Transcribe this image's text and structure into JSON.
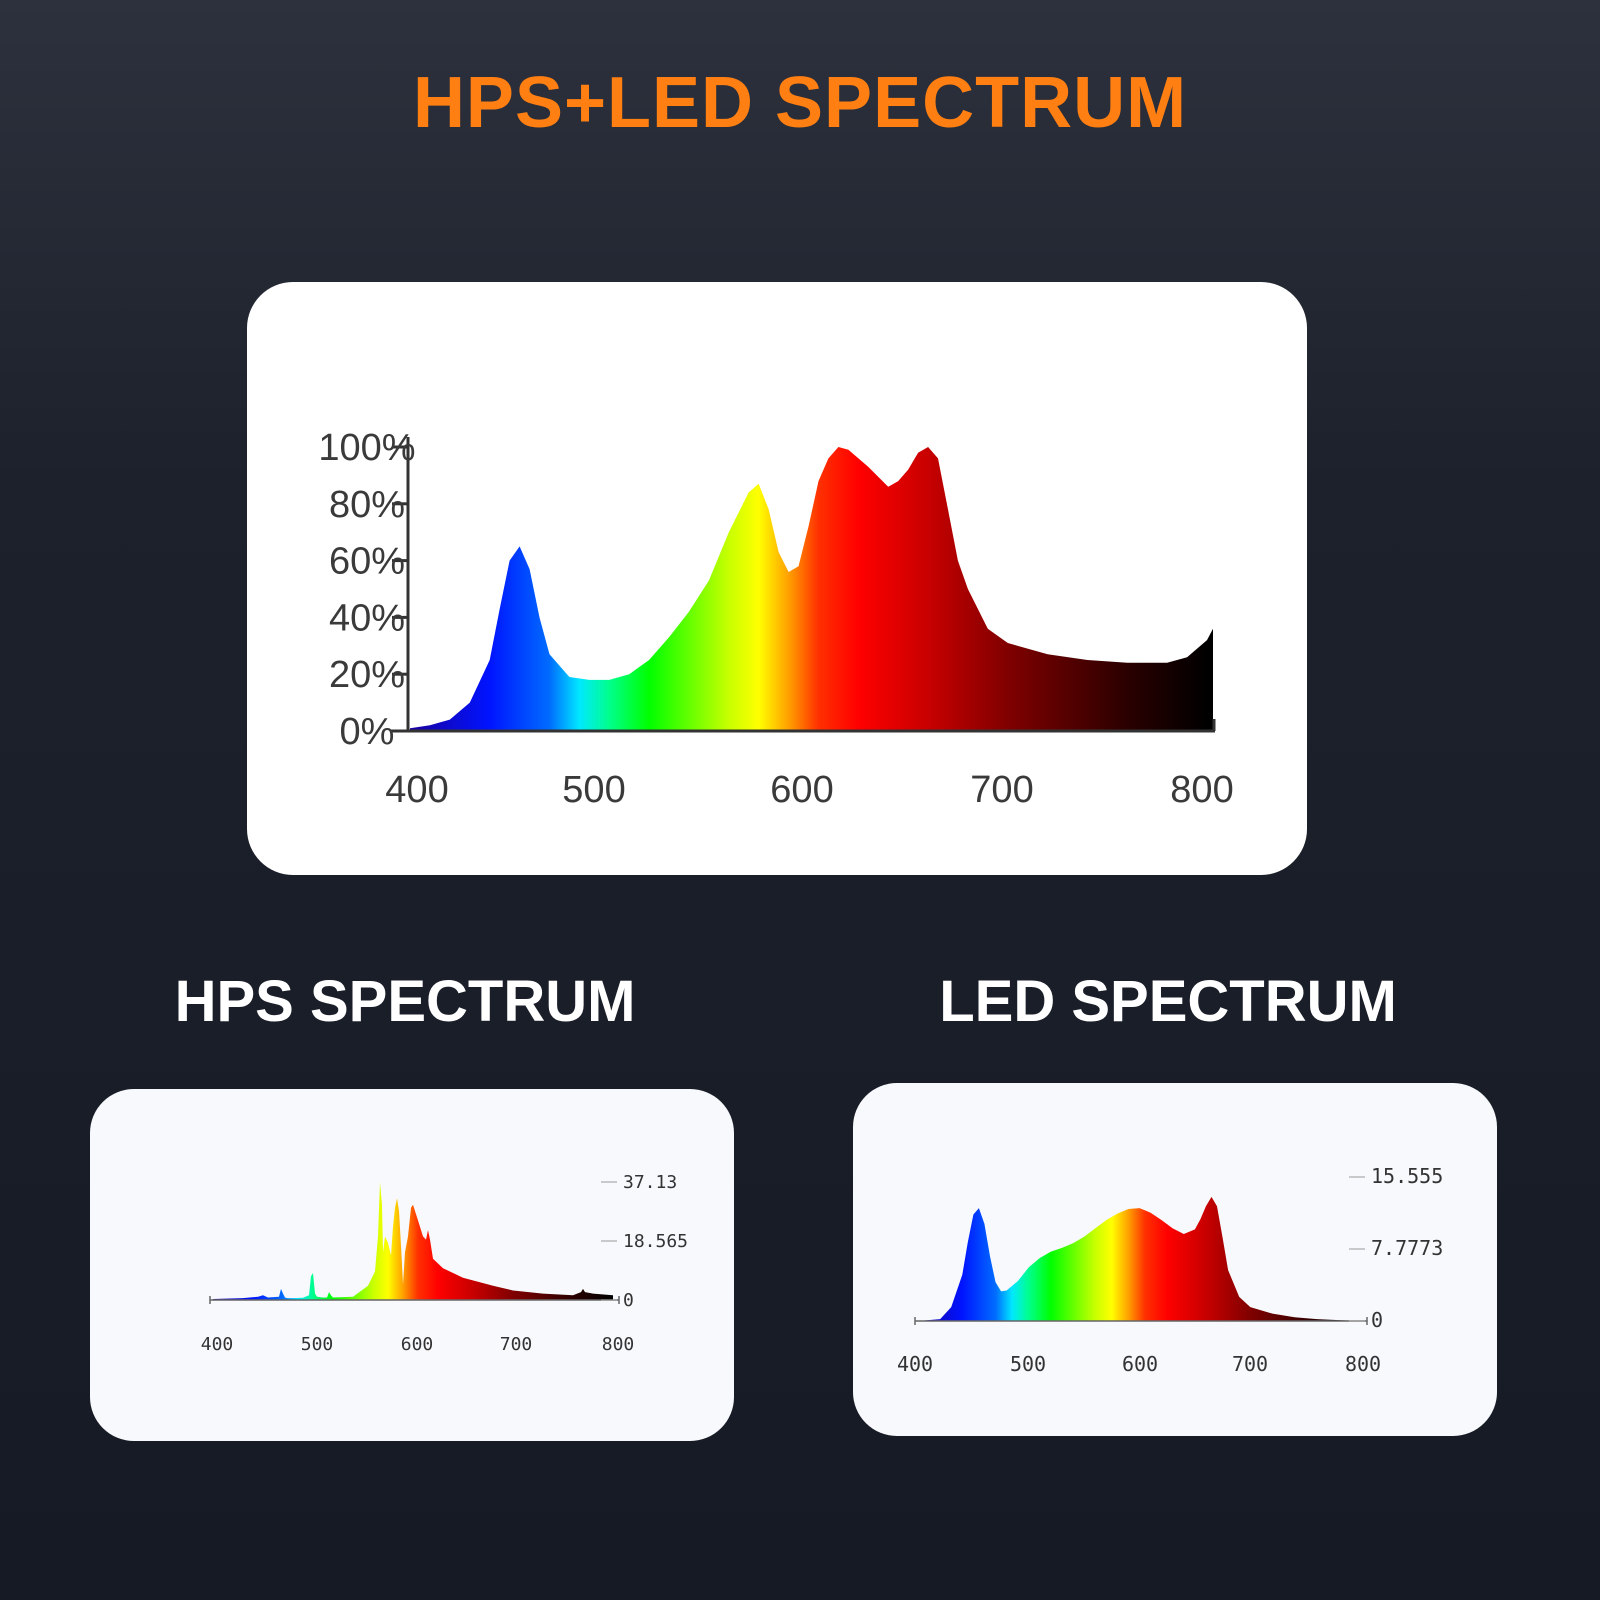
{
  "titles": {
    "main": "HPS+LED SPECTRUM",
    "hps": "HPS SPECTRUM",
    "led": "LED SPECTRUM"
  },
  "colors": {
    "main_title": "#ff7f12",
    "sub_title": "#ffffff",
    "card_background": "#ffffff",
    "page_background": "#161a24"
  },
  "chart_data": [
    {
      "id": "combined",
      "type": "area",
      "title": "HPS+LED SPECTRUM",
      "xlabel": "",
      "ylabel": "",
      "xlim": [
        400,
        800
      ],
      "ylim": [
        0,
        100
      ],
      "xticks": [
        "400",
        "500",
        "600",
        "700",
        "800"
      ],
      "yticks": [
        "0%",
        "20%",
        "40%",
        "60%",
        "80%",
        "100%"
      ],
      "x": [
        400,
        410,
        420,
        430,
        440,
        445,
        450,
        455,
        460,
        465,
        470,
        480,
        490,
        500,
        510,
        520,
        530,
        540,
        550,
        560,
        570,
        575,
        580,
        585,
        590,
        595,
        600,
        605,
        610,
        615,
        620,
        630,
        640,
        645,
        650,
        655,
        660,
        665,
        670,
        675,
        680,
        690,
        700,
        720,
        740,
        760,
        780,
        790,
        800,
        803
      ],
      "y": [
        1,
        2,
        4,
        10,
        25,
        43,
        60,
        65,
        57,
        40,
        27,
        19,
        18,
        18,
        20,
        25,
        33,
        42,
        53,
        70,
        84,
        87,
        78,
        63,
        56,
        58,
        72,
        88,
        96,
        100,
        99,
        93,
        86,
        88,
        92,
        98,
        100,
        96,
        78,
        60,
        50,
        36,
        31,
        27,
        25,
        24,
        24,
        26,
        32,
        36
      ]
    },
    {
      "id": "hps",
      "type": "area",
      "title": "HPS SPECTRUM",
      "xlim": [
        400,
        800
      ],
      "ylim": [
        0,
        37.13
      ],
      "xticks": [
        "400",
        "500",
        "600",
        "700",
        "800"
      ],
      "yticks": [
        "0",
        "18.565",
        "37.13"
      ],
      "x": [
        400,
        430,
        445,
        450,
        455,
        466,
        468,
        470,
        472,
        474,
        480,
        490,
        496,
        498,
        500,
        502,
        504,
        510,
        514,
        516,
        518,
        520,
        540,
        555,
        562,
        565,
        567,
        569,
        570,
        572,
        575,
        578,
        580,
        582,
        584,
        586,
        588,
        590,
        592,
        595,
        598,
        600,
        605,
        610,
        613,
        615,
        617,
        620,
        630,
        650,
        680,
        700,
        730,
        760,
        768,
        770,
        772,
        780,
        800
      ],
      "y": [
        0.3,
        0.6,
        1.0,
        1.5,
        0.8,
        1.0,
        3.5,
        2.0,
        0.8,
        0.6,
        0.6,
        0.7,
        1.5,
        7.5,
        8.5,
        2.0,
        1.0,
        0.8,
        0.8,
        2.5,
        1.5,
        0.8,
        1.0,
        4.5,
        9.0,
        20.0,
        37.0,
        30.0,
        15.0,
        20.0,
        18.0,
        14.0,
        23.0,
        29.0,
        32.0,
        28.0,
        17.0,
        5.0,
        15.0,
        20.0,
        29.0,
        30.0,
        25.0,
        20.0,
        19.0,
        22.0,
        19.0,
        13.0,
        10.0,
        7.0,
        4.5,
        3.0,
        2.0,
        1.5,
        2.5,
        3.5,
        2.5,
        2.0,
        1.5
      ]
    },
    {
      "id": "led",
      "type": "area",
      "title": "LED SPECTRUM",
      "xlim": [
        400,
        800
      ],
      "ylim": [
        0,
        15.555
      ],
      "xticks": [
        "400",
        "500",
        "600",
        "700",
        "800"
      ],
      "yticks": [
        "0",
        "7.7773",
        "15.555"
      ],
      "x": [
        400,
        420,
        430,
        440,
        445,
        450,
        455,
        460,
        465,
        470,
        475,
        480,
        490,
        500,
        510,
        520,
        530,
        540,
        550,
        560,
        570,
        580,
        590,
        600,
        610,
        620,
        630,
        640,
        650,
        655,
        660,
        665,
        670,
        675,
        680,
        690,
        700,
        720,
        740,
        760,
        780,
        800
      ],
      "y": [
        0,
        0.2,
        1.5,
        5.0,
        8.5,
        11.5,
        12.2,
        10.5,
        7.0,
        4.2,
        3.2,
        3.3,
        4.3,
        5.8,
        6.8,
        7.5,
        7.9,
        8.4,
        9.1,
        10.0,
        10.9,
        11.6,
        12.1,
        12.2,
        11.7,
        10.9,
        10.0,
        9.4,
        9.9,
        11.0,
        12.4,
        13.4,
        12.4,
        9.0,
        5.5,
        2.6,
        1.5,
        0.8,
        0.4,
        0.2,
        0.1,
        0.0
      ]
    }
  ]
}
